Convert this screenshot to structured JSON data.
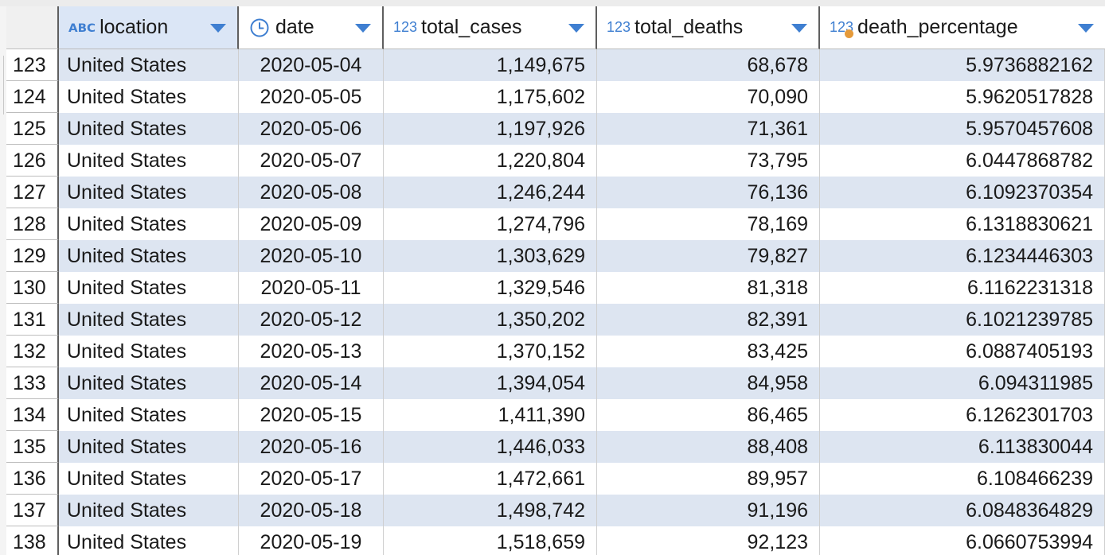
{
  "table": {
    "columns": [
      {
        "type_icon": "ABC",
        "icon_name": "text-type-icon",
        "name": "location"
      },
      {
        "type_icon": "clock",
        "icon_name": "clock-icon",
        "name": "date"
      },
      {
        "type_icon": "123",
        "icon_name": "number-type-icon",
        "name": "total_cases"
      },
      {
        "type_icon": "123",
        "icon_name": "number-type-icon",
        "name": "total_deaths"
      },
      {
        "type_icon": "123",
        "icon_name": "calculated-number-type-icon",
        "name": "death_percentage"
      }
    ],
    "rows": [
      {
        "n": "123",
        "location": "United States",
        "date": "2020-05-04",
        "total_cases": "1,149,675",
        "total_deaths": "68,678",
        "death_percentage": "5.9736882162"
      },
      {
        "n": "124",
        "location": "United States",
        "date": "2020-05-05",
        "total_cases": "1,175,602",
        "total_deaths": "70,090",
        "death_percentage": "5.9620517828"
      },
      {
        "n": "125",
        "location": "United States",
        "date": "2020-05-06",
        "total_cases": "1,197,926",
        "total_deaths": "71,361",
        "death_percentage": "5.9570457608"
      },
      {
        "n": "126",
        "location": "United States",
        "date": "2020-05-07",
        "total_cases": "1,220,804",
        "total_deaths": "73,795",
        "death_percentage": "6.0447868782"
      },
      {
        "n": "127",
        "location": "United States",
        "date": "2020-05-08",
        "total_cases": "1,246,244",
        "total_deaths": "76,136",
        "death_percentage": "6.1092370354"
      },
      {
        "n": "128",
        "location": "United States",
        "date": "2020-05-09",
        "total_cases": "1,274,796",
        "total_deaths": "78,169",
        "death_percentage": "6.1318830621"
      },
      {
        "n": "129",
        "location": "United States",
        "date": "2020-05-10",
        "total_cases": "1,303,629",
        "total_deaths": "79,827",
        "death_percentage": "6.1234446303"
      },
      {
        "n": "130",
        "location": "United States",
        "date": "2020-05-11",
        "total_cases": "1,329,546",
        "total_deaths": "81,318",
        "death_percentage": "6.1162231318"
      },
      {
        "n": "131",
        "location": "United States",
        "date": "2020-05-12",
        "total_cases": "1,350,202",
        "total_deaths": "82,391",
        "death_percentage": "6.1021239785"
      },
      {
        "n": "132",
        "location": "United States",
        "date": "2020-05-13",
        "total_cases": "1,370,152",
        "total_deaths": "83,425",
        "death_percentage": "6.0887405193"
      },
      {
        "n": "133",
        "location": "United States",
        "date": "2020-05-14",
        "total_cases": "1,394,054",
        "total_deaths": "84,958",
        "death_percentage": "6.094311985"
      },
      {
        "n": "134",
        "location": "United States",
        "date": "2020-05-15",
        "total_cases": "1,411,390",
        "total_deaths": "86,465",
        "death_percentage": "6.1262301703"
      },
      {
        "n": "135",
        "location": "United States",
        "date": "2020-05-16",
        "total_cases": "1,446,033",
        "total_deaths": "88,408",
        "death_percentage": "6.113830044"
      },
      {
        "n": "136",
        "location": "United States",
        "date": "2020-05-17",
        "total_cases": "1,472,661",
        "total_deaths": "89,957",
        "death_percentage": "6.108466239"
      },
      {
        "n": "137",
        "location": "United States",
        "date": "2020-05-18",
        "total_cases": "1,498,742",
        "total_deaths": "91,196",
        "death_percentage": "6.0848364829"
      },
      {
        "n": "138",
        "location": "United States",
        "date": "2020-05-19",
        "total_cases": "1,518,659",
        "total_deaths": "92,123",
        "death_percentage": "6.0660753994"
      }
    ]
  },
  "colors": {
    "accent": "#3f7fd1",
    "alt_row": "#dde5f1",
    "selected_header": "#dbe6f6",
    "calc_dot": "#e59a3a"
  }
}
